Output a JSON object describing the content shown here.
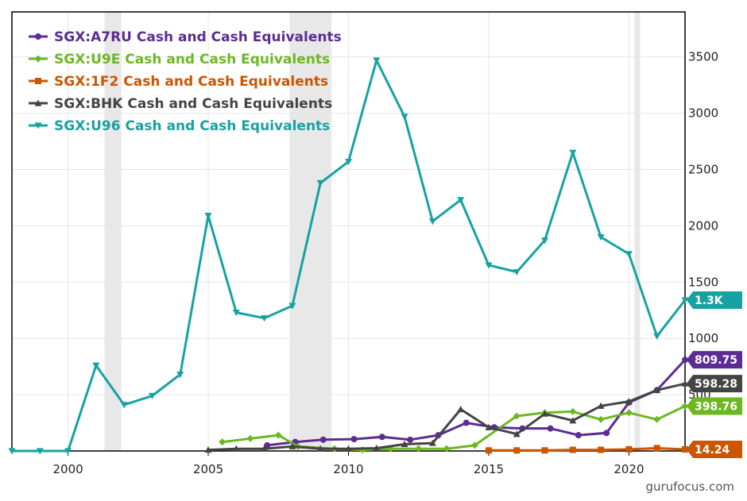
{
  "chart_data": {
    "type": "line",
    "title": "",
    "xlabel": "",
    "ylabel": "",
    "xlim": [
      1998,
      2022
    ],
    "ylim": [
      0,
      3900
    ],
    "x_ticks": [
      2000,
      2005,
      2010,
      2015,
      2020
    ],
    "y_ticks": [
      0,
      500,
      1000,
      1500,
      2000,
      2500,
      3000,
      3500
    ],
    "y_axis_side": "right",
    "grid": true,
    "legend_position": "top-left",
    "recession_bands": [
      [
        2001.3,
        2001.9
      ],
      [
        2007.9,
        2009.4
      ],
      [
        2020.2,
        2020.4
      ]
    ],
    "series": [
      {
        "name": "SGX:A7RU Cash and Cash Equivalents",
        "color": "#5b2d94",
        "marker": "circle",
        "end_label": "809.75",
        "points": [
          [
            2007.1,
            50
          ],
          [
            2008.1,
            80
          ],
          [
            2009.1,
            100
          ],
          [
            2010.2,
            105
          ],
          [
            2011.2,
            125
          ],
          [
            2012.2,
            100
          ],
          [
            2013.2,
            140
          ],
          [
            2014.2,
            250
          ],
          [
            2015.2,
            210
          ],
          [
            2016.2,
            200
          ],
          [
            2017.2,
            200
          ],
          [
            2018.2,
            140
          ],
          [
            2019.2,
            160
          ],
          [
            2020,
            430
          ],
          [
            2021,
            540
          ],
          [
            2022,
            809.75
          ]
        ]
      },
      {
        "name": "SGX:U9E Cash and Cash Equivalents",
        "color": "#6cb823",
        "marker": "diamond",
        "end_label": "398.76",
        "points": [
          [
            2005.5,
            80
          ],
          [
            2006.5,
            110
          ],
          [
            2007.5,
            140
          ],
          [
            2008.2,
            40
          ],
          [
            2009.5,
            20
          ],
          [
            2010.5,
            10
          ],
          [
            2011.5,
            20
          ],
          [
            2012.5,
            20
          ],
          [
            2013.5,
            20
          ],
          [
            2014.5,
            50
          ],
          [
            2016,
            310
          ],
          [
            2017,
            340
          ],
          [
            2018,
            350
          ],
          [
            2019,
            280
          ],
          [
            2020,
            340
          ],
          [
            2021,
            280
          ],
          [
            2022,
            398.76
          ]
        ]
      },
      {
        "name": "SGX:1F2 Cash and Cash Equivalents",
        "color": "#cc5500",
        "marker": "square",
        "end_label": "14.24",
        "points": [
          [
            2015,
            5
          ],
          [
            2016,
            5
          ],
          [
            2017,
            5
          ],
          [
            2018,
            10
          ],
          [
            2019,
            10
          ],
          [
            2020,
            15
          ],
          [
            2021,
            25
          ],
          [
            2022,
            14.24
          ]
        ]
      },
      {
        "name": "SGX:BHK Cash and Cash Equivalents",
        "color": "#444444",
        "marker": "triangle-up",
        "end_label": "598.28",
        "points": [
          [
            2005,
            10
          ],
          [
            2006,
            20
          ],
          [
            2007,
            20
          ],
          [
            2008,
            40
          ],
          [
            2009,
            20
          ],
          [
            2010,
            20
          ],
          [
            2011,
            25
          ],
          [
            2012,
            60
          ],
          [
            2013,
            70
          ],
          [
            2014,
            370
          ],
          [
            2015,
            210
          ],
          [
            2016,
            150
          ],
          [
            2017,
            330
          ],
          [
            2018,
            270
          ],
          [
            2019,
            400
          ],
          [
            2020,
            440
          ],
          [
            2021,
            540
          ],
          [
            2022,
            598.28
          ]
        ]
      },
      {
        "name": "SGX:U96 Cash and Cash Equivalents",
        "color": "#17a2a2",
        "marker": "triangle-down",
        "end_label": "1.3K",
        "points": [
          [
            1998,
            0
          ],
          [
            1999,
            0
          ],
          [
            2000,
            0
          ],
          [
            2001,
            760
          ],
          [
            2002,
            410
          ],
          [
            2003,
            490
          ],
          [
            2004,
            680
          ],
          [
            2005,
            2090
          ],
          [
            2006,
            1230
          ],
          [
            2007,
            1180
          ],
          [
            2008,
            1290
          ],
          [
            2009,
            2380
          ],
          [
            2010,
            2570
          ],
          [
            2011,
            3470
          ],
          [
            2012,
            2970
          ],
          [
            2013,
            2040
          ],
          [
            2014,
            2230
          ],
          [
            2015,
            1650
          ],
          [
            2016,
            1590
          ],
          [
            2017,
            1870
          ],
          [
            2018,
            2650
          ],
          [
            2019,
            1900
          ],
          [
            2020,
            1750
          ],
          [
            2021,
            1020
          ],
          [
            2022,
            1340
          ]
        ]
      }
    ]
  },
  "watermark": "gurufocus.com"
}
